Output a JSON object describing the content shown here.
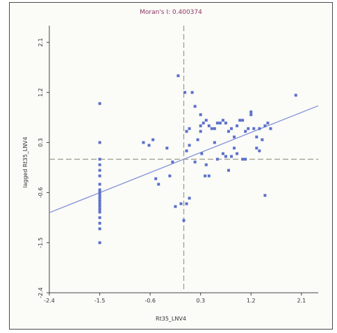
{
  "chart_data": {
    "type": "scatter",
    "title": "Moran's I: 0.400374",
    "xlabel": "Rt35_LNV4",
    "ylabel": "lagged Rt35_LNV4",
    "xlim": [
      -2.4,
      2.4
    ],
    "ylim": [
      -2.4,
      2.4
    ],
    "x_ticks": [
      "-2.4",
      "-1.5",
      "-0.6",
      "0.3",
      "1.2",
      "2.1"
    ],
    "y_ticks": [
      "2.1",
      "1.2",
      "0.3",
      "-0.6",
      "-1.5",
      "-2.4"
    ],
    "x_tick_values": [
      -2.4,
      -1.5,
      -0.6,
      0.3,
      1.2,
      2.1
    ],
    "y_tick_values": [
      2.1,
      1.2,
      0.3,
      -0.6,
      -1.5,
      -2.4
    ],
    "mean_lines": {
      "x": 0,
      "y": 0
    },
    "regression": {
      "slope": 0.400374,
      "intercept": 0
    },
    "grid": false,
    "colors": {
      "points": "#5b6fc9",
      "regression_line": "#8090d8",
      "mean_lines": "#9a9a8a",
      "title": "#8c3563",
      "axes": "#444444"
    },
    "series": [
      {
        "x": [
          -1.5,
          -1.5,
          -1.5,
          -1.5,
          -1.5,
          -1.5,
          -1.5,
          -1.5,
          -1.5,
          -1.5,
          -1.5,
          -1.5,
          -1.5,
          -1.5,
          -1.5,
          -1.5,
          -1.5,
          -1.5,
          -1.5,
          -1.5,
          -0.62,
          -0.72,
          -0.55,
          -0.45,
          -0.5,
          -0.3,
          -0.2,
          -0.1,
          -0.05,
          0.05,
          0.0,
          -0.15,
          -0.25,
          0.02,
          0.05,
          0.05,
          0.1,
          0.1,
          0.15,
          0.1,
          0.2,
          0.3,
          0.35,
          0.4,
          0.25,
          0.3,
          0.32,
          0.38,
          0.45,
          0.5,
          0.55,
          0.6,
          0.65,
          0.7,
          0.75,
          0.8,
          0.85,
          0.9,
          0.95,
          1.0,
          1.05,
          1.1,
          1.15,
          1.2,
          1.25,
          1.3,
          1.35,
          1.45,
          1.5,
          1.55,
          1.4,
          1.35,
          0.55,
          0.7,
          0.75,
          0.9,
          0.95,
          1.05,
          1.1,
          0.3,
          0.4,
          0.45,
          0.6,
          0.8,
          0.85,
          1.2,
          1.3,
          0.2,
          2.0,
          1.45
        ],
        "y": [
          1.0,
          0.3,
          0.0,
          -0.1,
          -0.2,
          -0.3,
          -0.45,
          -0.6,
          -0.65,
          -0.7,
          -0.75,
          -0.8,
          -0.85,
          -0.9,
          -0.95,
          -1.05,
          -1.15,
          -1.25,
          -1.5,
          -0.55,
          0.25,
          0.3,
          0.35,
          -0.45,
          -0.35,
          0.2,
          -0.05,
          1.5,
          -0.8,
          -0.8,
          -1.1,
          -0.85,
          -0.3,
          1.2,
          0.15,
          0.5,
          0.55,
          0.25,
          1.2,
          -0.7,
          -0.05,
          0.5,
          0.65,
          0.7,
          0.35,
          0.6,
          0.1,
          -0.3,
          0.6,
          0.55,
          0.55,
          0.65,
          0.65,
          0.7,
          0.65,
          0.5,
          0.55,
          0.4,
          0.6,
          0.7,
          0.7,
          0.5,
          0.55,
          0.8,
          0.55,
          0.4,
          0.55,
          0.6,
          0.65,
          0.55,
          0.35,
          0.15,
          0.3,
          0.1,
          0.05,
          0.2,
          0.1,
          0.0,
          0.0,
          0.8,
          -0.1,
          -0.3,
          0.0,
          -0.2,
          0.05,
          0.85,
          0.2,
          0.95,
          1.15,
          -0.65
        ]
      }
    ]
  }
}
